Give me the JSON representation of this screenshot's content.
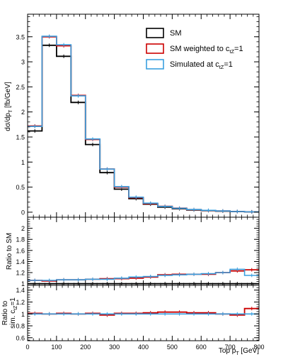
{
  "chart_data": [
    {
      "type": "line",
      "panel": "main",
      "ylabel_main": "dσ/dp",
      "ylabel_sub": "T",
      "ylabel_unit": " [fb/GeV]",
      "ylim": [
        -0.1,
        3.95
      ],
      "yticks": [
        "0",
        "0.5",
        "1",
        "1.5",
        "2",
        "2.5",
        "3",
        "3.5"
      ],
      "xlim": [
        0,
        800
      ],
      "bin_edges": [
        0,
        50,
        100,
        150,
        200,
        250,
        300,
        350,
        400,
        450,
        500,
        550,
        600,
        650,
        700,
        750,
        800
      ],
      "legend": [
        {
          "name": "SM",
          "sub": "",
          "suffix": "",
          "color": "#000000"
        },
        {
          "name": "SM weighted to c",
          "sub": "tZ",
          "suffix": "=1",
          "color": "#cc0000"
        },
        {
          "name": "Simulated at c",
          "sub": "tZ",
          "suffix": "=1",
          "color": "#3aa0e0"
        }
      ],
      "series": [
        {
          "key": "sm",
          "color": "#000000",
          "values": [
            1.62,
            3.33,
            3.11,
            2.19,
            1.35,
            0.79,
            0.46,
            0.27,
            0.16,
            0.1,
            0.068,
            0.045,
            0.031,
            0.02,
            0.012,
            0.006
          ]
        },
        {
          "key": "weighted",
          "color": "#cc0000",
          "values": [
            1.72,
            3.5,
            3.32,
            2.33,
            1.45,
            0.86,
            0.5,
            0.29,
            0.17,
            0.116,
            0.08,
            0.052,
            0.036,
            0.024,
            0.014,
            0.008
          ]
        },
        {
          "key": "simulated",
          "color": "#3aa0e0",
          "values": [
            1.71,
            3.51,
            3.34,
            2.32,
            1.46,
            0.86,
            0.51,
            0.3,
            0.18,
            0.115,
            0.078,
            0.053,
            0.037,
            0.025,
            0.015,
            0.008
          ]
        }
      ]
    },
    {
      "type": "line",
      "panel": "ratio_sm",
      "ylabel": "Ratio to SM",
      "ylim": [
        0.97,
        2.2
      ],
      "yticks": [
        "1",
        "1.2",
        "1.4",
        "1.6",
        "1.8",
        "2"
      ],
      "xlim": [
        0,
        800
      ],
      "series": [
        {
          "key": "sm",
          "color": "#000000",
          "values": [
            1,
            1,
            1,
            1,
            1,
            1,
            1,
            1,
            1,
            1,
            1,
            1,
            1,
            1,
            1,
            1
          ]
        },
        {
          "key": "weighted",
          "color": "#cc0000",
          "values": [
            1.06,
            1.05,
            1.07,
            1.07,
            1.08,
            1.09,
            1.09,
            1.1,
            1.12,
            1.16,
            1.17,
            1.17,
            1.17,
            1.2,
            1.23,
            1.25
          ]
        },
        {
          "key": "simulated",
          "color": "#3aa0e0",
          "values": [
            1.06,
            1.06,
            1.07,
            1.07,
            1.08,
            1.08,
            1.1,
            1.12,
            1.13,
            1.15,
            1.16,
            1.17,
            1.18,
            1.2,
            1.26,
            1.15
          ]
        }
      ]
    },
    {
      "type": "line",
      "panel": "ratio_sim",
      "ylabel_line1": "Ratio to",
      "ylabel_line2": "sim. c",
      "ylabel_line2_sub": "tZ",
      "ylabel_line2_suffix": "=1",
      "ylim": [
        0.55,
        1.48
      ],
      "yticks": [
        "0.6",
        "0.8",
        "1",
        "1.2",
        "1.4"
      ],
      "xlim": [
        0,
        800
      ],
      "xlabel_main": "Top p",
      "xlabel_sub": "T",
      "xlabel_unit": " [GeV]",
      "xticks": [
        "0",
        "100",
        "200",
        "300",
        "400",
        "500",
        "600",
        "700",
        "800"
      ],
      "series": [
        {
          "key": "weighted",
          "color": "#cc0000",
          "values": [
            1.01,
            1.0,
            1.01,
            1.0,
            1.01,
            0.98,
            1.01,
            1.01,
            1.02,
            1.03,
            1.03,
            1.02,
            1.02,
            1.0,
            0.98,
            1.09
          ]
        },
        {
          "key": "simulated",
          "color": "#3aa0e0",
          "values": [
            1.0,
            1.0,
            1.0,
            1.0,
            1.0,
            1.0,
            1.0,
            1.0,
            1.0,
            1.0,
            1.0,
            1.0,
            1.0,
            1.0,
            1.0,
            1.0
          ]
        }
      ]
    }
  ]
}
